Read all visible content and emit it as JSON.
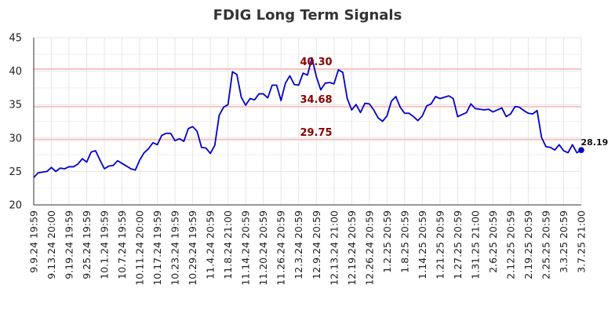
{
  "chart_data": {
    "type": "line",
    "title": "FDIG Long Term Signals",
    "ylim": [
      20,
      45
    ],
    "yticks": [
      "20",
      "25",
      "30",
      "35",
      "40",
      "45"
    ],
    "grid": true,
    "series_color": "#0000cc",
    "ref_line_color": "#f7c4c4",
    "ref_label_color": "#8b0000",
    "reference_lines": [
      {
        "value": 40.3,
        "label": "40.30"
      },
      {
        "value": 34.68,
        "label": "34.68"
      },
      {
        "value": 29.75,
        "label": "29.75"
      }
    ],
    "last_value_label": "28.19",
    "x_tick_labels": [
      "9.9.24 19:59",
      "9.13.24 20:00",
      "9.19.24 19:59",
      "9.25.24 19:59",
      "10.1.24 19:59",
      "10.7.24 19:59",
      "10.11.24 20:00",
      "10.17.24 19:59",
      "10.23.24 19:59",
      "10.29.24 19:59",
      "11.4.24 20:59",
      "11.8.24 21:00",
      "11.14.24 20:59",
      "11.20.24 20:59",
      "11.26.24 20:59",
      "12.3.24 20:59",
      "12.9.24 20:59",
      "12.13.24 21:00",
      "12.19.24 20:59",
      "12.26.24 20:59",
      "1.2.25 20:59",
      "1.8.25 20:59",
      "1.14.25 20:59",
      "1.21.25 20:59",
      "1.27.25 20:59",
      "1.31.25 21:00",
      "2.6.25 20:59",
      "2.12.25 20:59",
      "2.19.25 20:59",
      "2.25.25 20:59",
      "3.3.25 20:59",
      "3.7.25 21:00"
    ],
    "values": [
      24.1,
      24.8,
      24.9,
      25.0,
      25.6,
      25.0,
      25.5,
      25.4,
      25.7,
      25.7,
      26.1,
      26.9,
      26.4,
      27.9,
      28.1,
      26.7,
      25.4,
      25.8,
      25.9,
      26.6,
      26.2,
      25.8,
      25.4,
      25.2,
      26.7,
      27.8,
      28.4,
      29.3,
      29.0,
      30.4,
      30.7,
      30.7,
      29.6,
      29.9,
      29.5,
      31.4,
      31.7,
      31.0,
      28.6,
      28.5,
      27.7,
      28.9,
      33.4,
      34.6,
      35.0,
      39.9,
      39.5,
      36.1,
      34.9,
      35.9,
      35.7,
      36.6,
      36.6,
      36.0,
      37.9,
      37.9,
      35.6,
      38.2,
      39.3,
      38.0,
      37.9,
      39.7,
      39.4,
      42.0,
      39.2,
      37.2,
      38.2,
      38.3,
      38.1,
      40.2,
      39.8,
      35.9,
      34.2,
      35.0,
      33.8,
      35.2,
      35.1,
      34.2,
      33.0,
      32.5,
      33.3,
      35.5,
      36.2,
      34.6,
      33.7,
      33.7,
      33.2,
      32.6,
      33.3,
      34.8,
      35.1,
      36.2,
      35.9,
      36.1,
      36.3,
      35.9,
      33.2,
      33.5,
      33.8,
      35.1,
      34.4,
      34.3,
      34.2,
      34.3,
      33.9,
      34.2,
      34.5,
      33.2,
      33.6,
      34.7,
      34.6,
      34.1,
      33.7,
      33.6,
      34.1,
      30.1,
      28.7,
      28.6,
      28.2,
      29.0,
      28.1,
      27.8,
      29.0,
      27.8,
      28.19
    ]
  }
}
